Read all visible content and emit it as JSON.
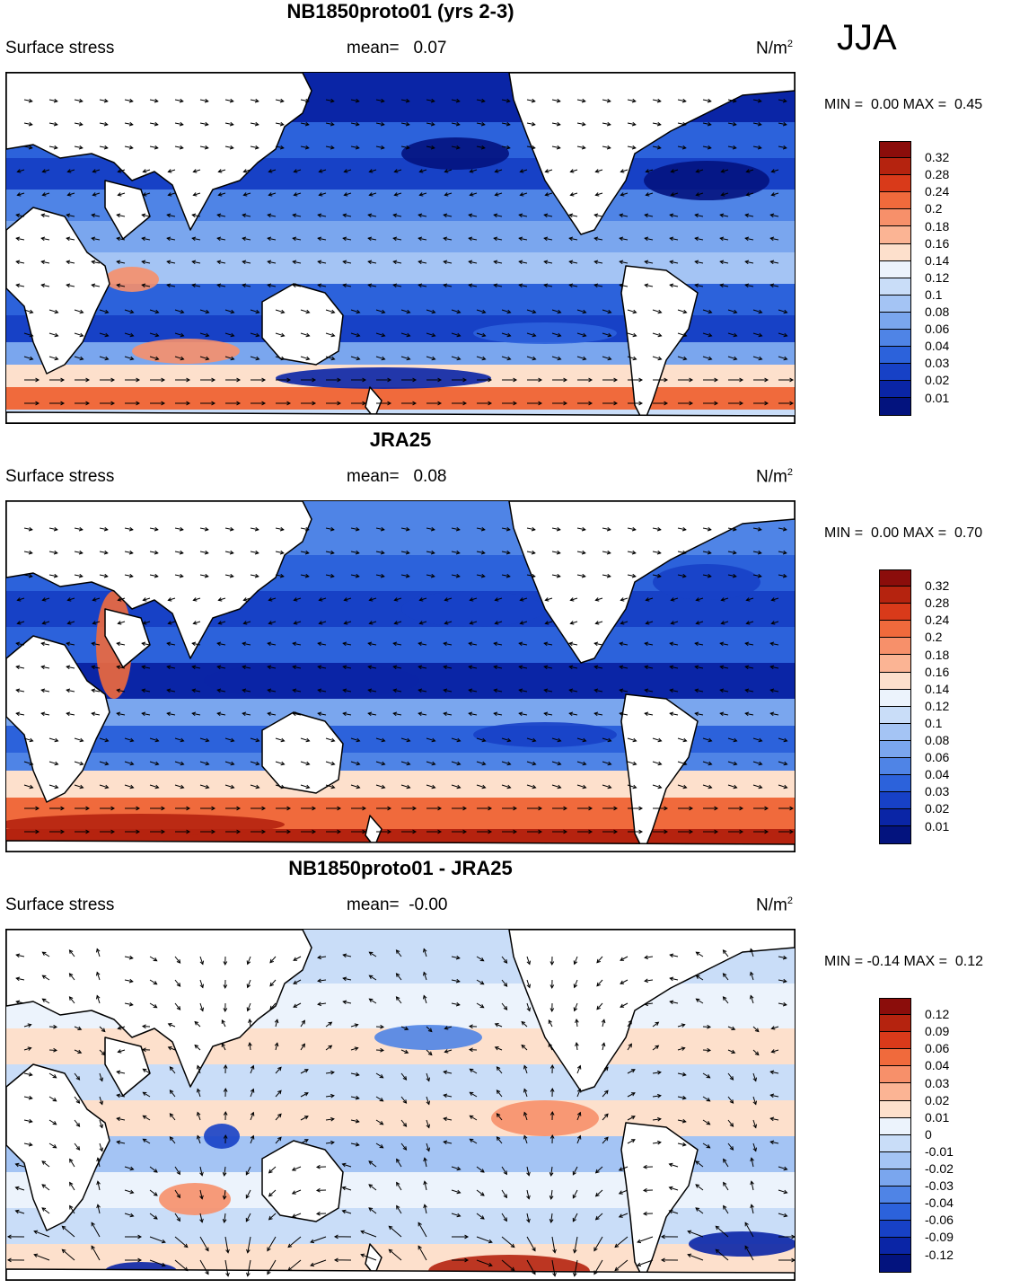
{
  "season": "JJA",
  "panels": [
    {
      "title": "NB1850proto01 (yrs 2-3)",
      "left_label": "Surface stress",
      "mean_label": "mean=",
      "mean_value": "0.07",
      "units": "N/m",
      "units_sup": "2",
      "min_label": "MIN =",
      "min_value": "0.00",
      "max_label": "MAX =",
      "max_value": "0.45",
      "colorbar": {
        "colors": [
          "#8b0d0b",
          "#b5230f",
          "#d93a1a",
          "#f06a3c",
          "#f7906a",
          "#fbb494",
          "#fde0cc",
          "#ecf3fc",
          "#c9ddf8",
          "#a4c4f4",
          "#7aa6ee",
          "#4f84e6",
          "#2c62db",
          "#1741c6",
          "#0a25a6",
          "#03137e"
        ],
        "labels": [
          "0.32",
          "0.28",
          "0.24",
          "0.2",
          "0.18",
          "0.16",
          "0.14",
          "0.12",
          "0.1",
          "0.08",
          "0.06",
          "0.04",
          "0.03",
          "0.02",
          "0.01"
        ]
      }
    },
    {
      "title": "JRA25",
      "left_label": "Surface stress",
      "mean_label": "mean=",
      "mean_value": "0.08",
      "units": "N/m",
      "units_sup": "2",
      "min_label": "MIN =",
      "min_value": "0.00",
      "max_label": "MAX =",
      "max_value": "0.70",
      "colorbar": {
        "colors": [
          "#8b0d0b",
          "#b5230f",
          "#d93a1a",
          "#f06a3c",
          "#f7906a",
          "#fbb494",
          "#fde0cc",
          "#ecf3fc",
          "#c9ddf8",
          "#a4c4f4",
          "#7aa6ee",
          "#4f84e6",
          "#2c62db",
          "#1741c6",
          "#0a25a6",
          "#03137e"
        ],
        "labels": [
          "0.32",
          "0.28",
          "0.24",
          "0.2",
          "0.18",
          "0.16",
          "0.14",
          "0.12",
          "0.1",
          "0.08",
          "0.06",
          "0.04",
          "0.03",
          "0.02",
          "0.01"
        ]
      }
    },
    {
      "title": "NB1850proto01 - JRA25",
      "left_label": "Surface stress",
      "mean_label": "mean=",
      "mean_value": "-0.00",
      "units": "N/m",
      "units_sup": "2",
      "min_label": "MIN =",
      "min_value": "-0.14",
      "max_label": "MAX =",
      "max_value": "0.12",
      "colorbar": {
        "colors": [
          "#8b0d0b",
          "#b5230f",
          "#d93a1a",
          "#f06a3c",
          "#f7906a",
          "#fbb494",
          "#fde0cc",
          "#ecf3fc",
          "#c9ddf8",
          "#a4c4f4",
          "#7aa6ee",
          "#4f84e6",
          "#2c62db",
          "#1741c6",
          "#0a25a6",
          "#03137e"
        ],
        "labels": [
          "0.12",
          "0.09",
          "0.06",
          "0.04",
          "0.03",
          "0.02",
          "0.01",
          "0",
          "-0.01",
          "-0.02",
          "-0.03",
          "-0.04",
          "-0.06",
          "-0.09",
          "-0.12"
        ]
      }
    }
  ],
  "colors": {
    "land": "#ffffff",
    "coast": "#000000",
    "vector": "#000000"
  }
}
